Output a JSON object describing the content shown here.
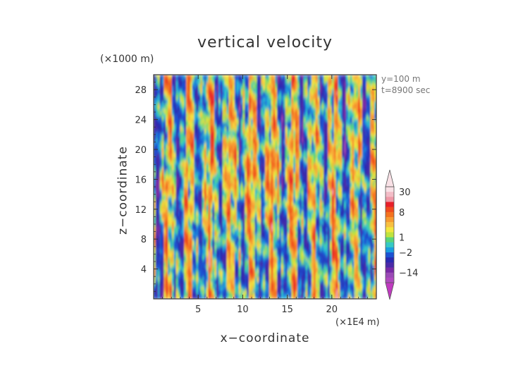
{
  "chart_data": {
    "type": "heatmap",
    "title": "vertical velocity",
    "xlabel": "x−coordinate",
    "ylabel": "z−coordinate",
    "x_unit": "(×1E4 m)",
    "y_unit": "(×1000 m)",
    "xlim": [
      0,
      25
    ],
    "ylim": [
      0,
      30
    ],
    "xticks": [
      "5",
      "10",
      "15",
      "20"
    ],
    "yticks": [
      "4",
      "8",
      "12",
      "16",
      "20",
      "24",
      "28"
    ],
    "annotations": [
      "y=100  m",
      "t=8900  sec"
    ],
    "colorbar": {
      "labels": [
        {
          "text": "30",
          "value": 30
        },
        {
          "text": "8",
          "value": 8
        },
        {
          "text": "1",
          "value": 1
        },
        {
          "text": "−2",
          "value": -2
        },
        {
          "text": "−14",
          "value": -14
        }
      ],
      "bins": [
        {
          "color": "#f9e1e6",
          "from": 30,
          "to": 40
        },
        {
          "color": "#f3bcc6",
          "from": 20,
          "to": 30
        },
        {
          "color": "#ef98a6",
          "from": 14,
          "to": 20
        },
        {
          "color": "#e8202a",
          "from": 10,
          "to": 14
        },
        {
          "color": "#f04a1e",
          "from": 8,
          "to": 10
        },
        {
          "color": "#f47320",
          "from": 6,
          "to": 8
        },
        {
          "color": "#f79a30",
          "from": 4,
          "to": 6
        },
        {
          "color": "#f8c040",
          "from": 3,
          "to": 4
        },
        {
          "color": "#f3e63e",
          "from": 2,
          "to": 3
        },
        {
          "color": "#bfe33e",
          "from": 1,
          "to": 2
        },
        {
          "color": "#5ad47a",
          "from": 0,
          "to": 1
        },
        {
          "color": "#35c9c4",
          "from": -1,
          "to": 0
        },
        {
          "color": "#1a9de0",
          "from": -2,
          "to": -1
        },
        {
          "color": "#1c52d2",
          "from": -4,
          "to": -2
        },
        {
          "color": "#2a2ab2",
          "from": -6,
          "to": -4
        },
        {
          "color": "#4a2aa8",
          "from": -10,
          "to": -6
        },
        {
          "color": "#7a2aa6",
          "from": -14,
          "to": -10
        },
        {
          "color": "#9a4ab6",
          "from": -20,
          "to": -14
        },
        {
          "color": "#b04ac0",
          "from": -30,
          "to": -20
        }
      ],
      "max_arrow_color": "#f9e1e6",
      "min_arrow_color": "#c03ac0"
    }
  }
}
